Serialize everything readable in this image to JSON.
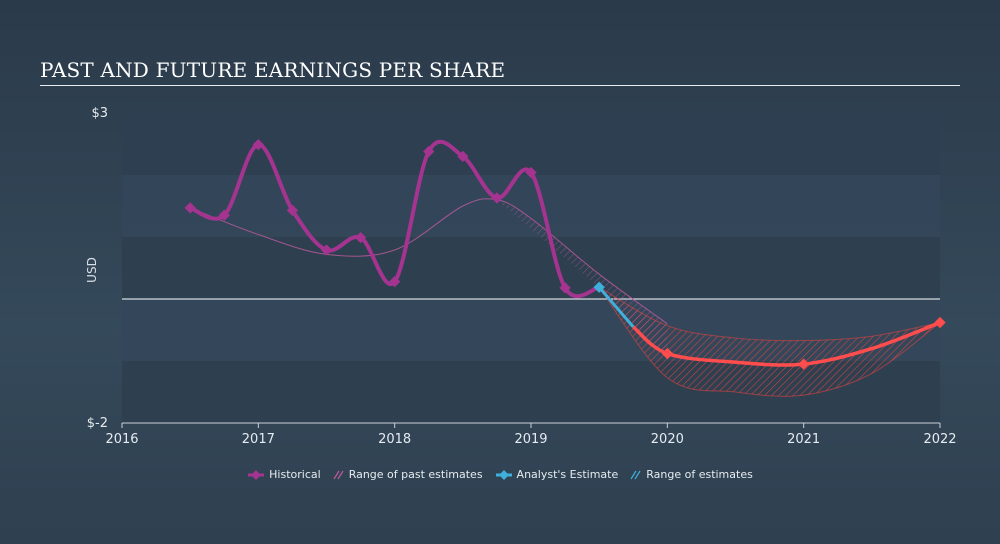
{
  "title": "PAST AND FUTURE EARNINGS PER SHARE",
  "colors": {
    "historical": "#a4348f",
    "past_range": "#c05a9f",
    "analyst": "#3fb0dc",
    "forecast": "#ff4d4d",
    "forecast_range": "#e0433f"
  },
  "legend": {
    "historical": "Historical",
    "past_range": "Range of past estimates",
    "analyst": "Analyst's Estimate",
    "range": "Range of estimates"
  },
  "chart_data": {
    "type": "line",
    "ylabel": "USD",
    "xlim": [
      2016,
      2022
    ],
    "ylim": [
      -2,
      3
    ],
    "y_ticks": [
      {
        "value": 3,
        "label": "$3"
      },
      {
        "value": -2,
        "label": "$-2"
      }
    ],
    "x_ticks": [
      {
        "value": 2016,
        "label": "2016"
      },
      {
        "value": 2017,
        "label": "2017"
      },
      {
        "value": 2018,
        "label": "2018"
      },
      {
        "value": 2019,
        "label": "2019"
      },
      {
        "value": 2020,
        "label": "2020"
      },
      {
        "value": 2021,
        "label": "2021"
      },
      {
        "value": 2022,
        "label": "2022"
      }
    ],
    "zero_line": 0,
    "series": [
      {
        "name": "Historical",
        "points": [
          [
            2016.5,
            1.47
          ],
          [
            2016.75,
            1.35
          ],
          [
            2017.0,
            2.49
          ],
          [
            2017.25,
            1.43
          ],
          [
            2017.5,
            0.79
          ],
          [
            2017.75,
            0.99
          ],
          [
            2018.0,
            0.28
          ],
          [
            2018.25,
            2.38
          ],
          [
            2018.5,
            2.3
          ],
          [
            2018.75,
            1.63
          ],
          [
            2019.0,
            2.04
          ],
          [
            2019.25,
            0.18
          ],
          [
            2019.5,
            0.19
          ]
        ]
      },
      {
        "name": "Analyst's Estimate",
        "points": [
          [
            2019.5,
            0.19
          ],
          [
            2019.75,
            -0.45
          ],
          [
            2020.0,
            -0.88
          ],
          [
            2020.5,
            -1.02
          ],
          [
            2021.0,
            -1.05
          ],
          [
            2021.5,
            -0.8
          ],
          [
            2022.0,
            -0.38
          ]
        ]
      }
    ],
    "past_estimate_range": {
      "points": [
        [
          2016.5,
          1.47
        ],
        [
          2017.0,
          1.04
        ],
        [
          2017.5,
          0.72
        ],
        [
          2018.0,
          0.79
        ],
        [
          2018.5,
          1.5
        ],
        [
          2018.75,
          1.6
        ],
        [
          2019.0,
          1.3
        ],
        [
          2019.5,
          0.4
        ],
        [
          2020.0,
          -0.4
        ]
      ]
    },
    "estimate_range": {
      "high": [
        [
          2019.5,
          0.19
        ],
        [
          2020.0,
          -0.43
        ],
        [
          2020.5,
          -0.63
        ],
        [
          2021.0,
          -0.67
        ],
        [
          2021.5,
          -0.6
        ],
        [
          2022.0,
          -0.38
        ]
      ],
      "low": [
        [
          2019.5,
          0.19
        ],
        [
          2020.0,
          -1.27
        ],
        [
          2020.5,
          -1.5
        ],
        [
          2021.0,
          -1.55
        ],
        [
          2021.5,
          -1.2
        ],
        [
          2022.0,
          -0.38
        ]
      ]
    }
  }
}
